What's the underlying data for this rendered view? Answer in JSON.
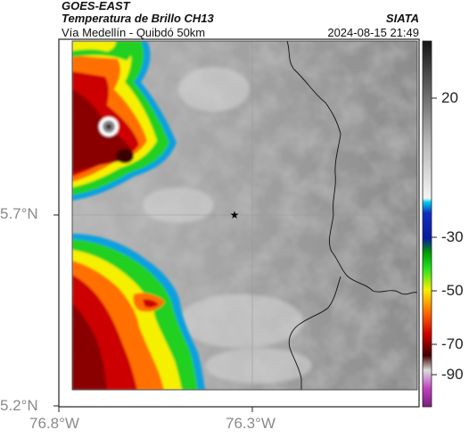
{
  "header": {
    "satellite": "GOES-EAST",
    "product": "Temperatura de Brillo CH13",
    "region": "Vía Medellín - Quibdó 50km",
    "agency": "SIATA",
    "timestamp": "2024-08-15 21:49"
  },
  "map": {
    "lat_labels": [
      "5.7°N",
      "5.2°N"
    ],
    "lon_labels": [
      "76.8°W",
      "76.3°W"
    ],
    "marker_icon": "star-icon"
  },
  "colorbar": {
    "ticks": [
      "20",
      "-30",
      "-50",
      "-70",
      "-90"
    ]
  },
  "colors": {
    "red": "#c00000",
    "dark_red": "#4a0000",
    "yellow": "#f5f000",
    "green": "#1fd21f",
    "blue": "#0a1aa0",
    "cyan": "#00c8e8",
    "magenta": "#c040c0"
  }
}
